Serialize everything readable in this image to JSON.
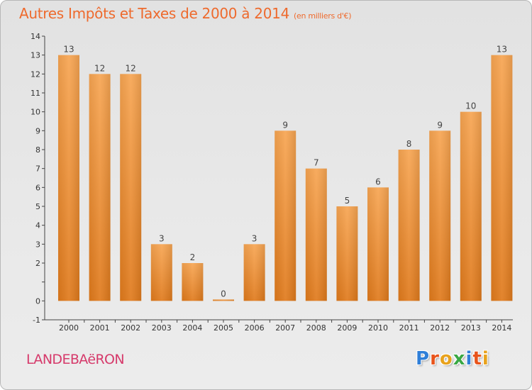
{
  "chart_data": {
    "type": "bar",
    "title": "Autres Impôts et Taxes de 2000 à 2014",
    "subtitle": "(en milliers d'€)",
    "categories": [
      "2000",
      "2001",
      "2002",
      "2003",
      "2004",
      "2005",
      "2006",
      "2007",
      "2008",
      "2009",
      "2010",
      "2011",
      "2012",
      "2013",
      "2014"
    ],
    "values": [
      13,
      12,
      12,
      3,
      2,
      0,
      3,
      9,
      7,
      5,
      6,
      8,
      9,
      10,
      13
    ],
    "data_labels": [
      "13",
      "12",
      "12",
      "3",
      "2",
      "0",
      "3",
      "9",
      "7",
      "5",
      "6",
      "8",
      "9",
      "10",
      "13"
    ],
    "y_ticks": [
      "-1",
      "0",
      "",
      "2",
      "3",
      "4",
      "5",
      "6",
      "7",
      "8",
      "9",
      "10",
      "11",
      "12",
      "13",
      "14"
    ],
    "ylim": [
      -1,
      14
    ],
    "grid": false,
    "bar_color": "#f0913a"
  },
  "footer": {
    "commune": "LANDEBAëRON",
    "brand": [
      "P",
      "r",
      "o",
      "x",
      "i",
      "t",
      "i"
    ],
    "brand_colors": [
      "#2f7fd8",
      "#e8541c",
      "#e8a21c",
      "#3aa844",
      "#2f7fd8",
      "#e8541c",
      "#e8a21c"
    ]
  }
}
